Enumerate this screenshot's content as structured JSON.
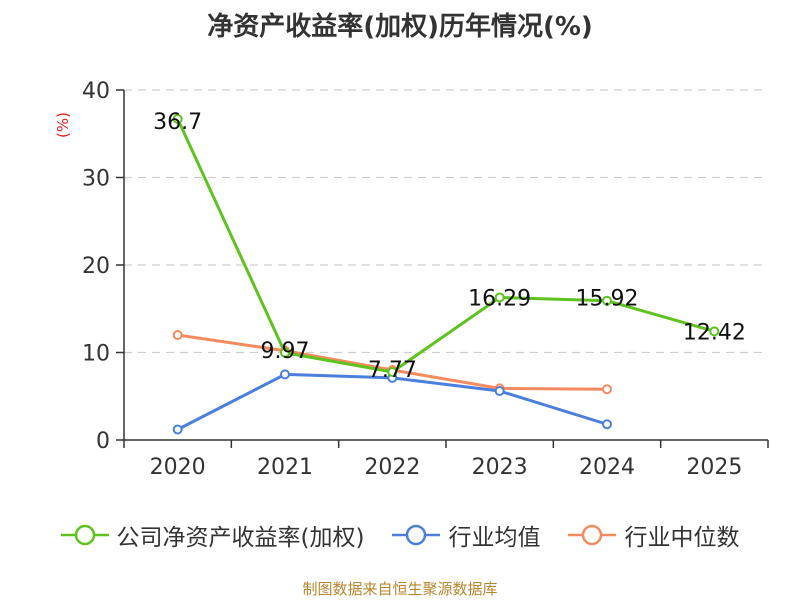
{
  "chart_data": {
    "type": "line",
    "title": "净资产收益率(加权)历年情况(%)",
    "ylabel": "(%)",
    "xlabel": "",
    "categories": [
      "2020",
      "2021",
      "2022",
      "2023",
      "2024",
      "2025"
    ],
    "ylim": [
      0,
      40
    ],
    "yticks": [
      0,
      10,
      20,
      30,
      40
    ],
    "grid": true,
    "legend_position": "bottom",
    "series": [
      {
        "name": "公司净资产收益率(加权)",
        "color": "#5ec31f",
        "values": [
          36.7,
          9.97,
          7.77,
          16.29,
          15.92,
          12.42
        ],
        "labels": [
          "36.7",
          "9.97",
          "7.77",
          "16.29",
          "15.92",
          "12.42"
        ]
      },
      {
        "name": "行业均值",
        "color": "#4a7fdb",
        "values": [
          1.2,
          7.5,
          7.1,
          5.6,
          1.8,
          null
        ]
      },
      {
        "name": "行业中位数",
        "color": "#f48b5e",
        "values": [
          12.0,
          10.2,
          8.0,
          5.9,
          5.8,
          null
        ]
      }
    ]
  },
  "source_note": "制图数据来自恒生聚源数据库"
}
